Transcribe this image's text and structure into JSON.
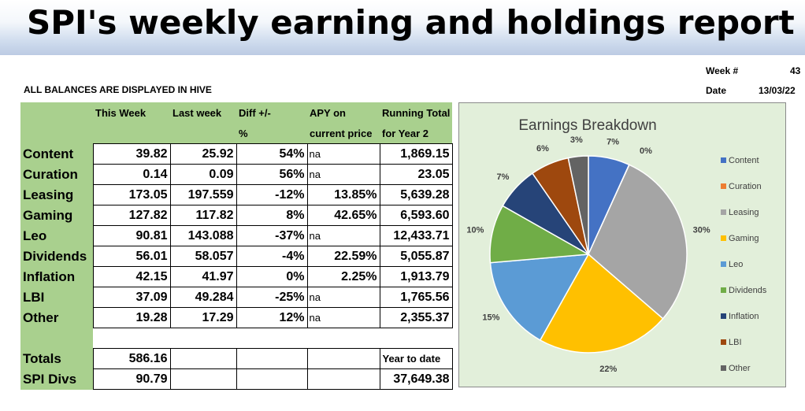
{
  "title": "SPI's weekly earning and holdings report",
  "week_label": "Week #",
  "week_value": "43",
  "date_label": "Date",
  "date_value": "13/03/22",
  "caption": "ALL BALANCES ARE DISPLAYED IN HIVE",
  "headers": {
    "this_week": "This Week",
    "last_week": "Last week",
    "diff_1": "Diff +/-",
    "diff_2": "%",
    "apy_1": "APY on",
    "apy_2": "current price",
    "total_1": "Running Total",
    "total_2": "for Year 2"
  },
  "rows": [
    {
      "label": "Content",
      "this_week": "39.82",
      "last_week": "25.92",
      "diff": "54%",
      "apy": "na",
      "total": "1,869.15"
    },
    {
      "label": "Curation",
      "this_week": "0.14",
      "last_week": "0.09",
      "diff": "56%",
      "apy": "na",
      "total": "23.05"
    },
    {
      "label": "Leasing",
      "this_week": "173.05",
      "last_week": "197.559",
      "diff": "-12%",
      "apy": "13.85%",
      "total": "5,639.28"
    },
    {
      "label": "Gaming",
      "this_week": "127.82",
      "last_week": "117.82",
      "diff": "8%",
      "apy": "42.65%",
      "total": "6,593.60"
    },
    {
      "label": "Leo",
      "this_week": "90.81",
      "last_week": "143.088",
      "diff": "-37%",
      "apy": "na",
      "total": "12,433.71"
    },
    {
      "label": "Dividends",
      "this_week": "56.01",
      "last_week": "58.057",
      "diff": "-4%",
      "apy": "22.59%",
      "total": "5,055.87"
    },
    {
      "label": "Inflation",
      "this_week": "42.15",
      "last_week": "41.97",
      "diff": "0%",
      "apy": "2.25%",
      "total": "1,913.79"
    },
    {
      "label": "LBI",
      "this_week": "37.09",
      "last_week": "49.284",
      "diff": "-25%",
      "apy": "na",
      "total": "1,765.56"
    },
    {
      "label": "Other",
      "this_week": "19.28",
      "last_week": "17.29",
      "diff": "12%",
      "apy": "na",
      "total": "2,355.37"
    }
  ],
  "totals": {
    "label": "Totals",
    "value": "586.16",
    "ytd_label": "Year to date"
  },
  "spi_divs": {
    "label": "SPI Divs",
    "value": "90.79",
    "ytd_value": "37,649.38"
  },
  "chart_data": {
    "type": "pie",
    "title": "Earnings Breakdown",
    "legend_position": "right",
    "slices": [
      {
        "name": "Content",
        "value": 39.82,
        "label": "7%",
        "color": "#4472c4"
      },
      {
        "name": "Curation",
        "value": 0.14,
        "label": "0%",
        "color": "#ed7d31"
      },
      {
        "name": "Leasing",
        "value": 173.05,
        "label": "30%",
        "color": "#a5a5a5"
      },
      {
        "name": "Gaming",
        "value": 127.82,
        "label": "22%",
        "color": "#ffc000"
      },
      {
        "name": "Leo",
        "value": 90.81,
        "label": "15%",
        "color": "#5b9bd5"
      },
      {
        "name": "Dividends",
        "value": 56.01,
        "label": "10%",
        "color": "#70ad47"
      },
      {
        "name": "Inflation",
        "value": 42.15,
        "label": "7%",
        "color": "#264478"
      },
      {
        "name": "LBI",
        "value": 37.09,
        "label": "6%",
        "color": "#9e480e"
      },
      {
        "name": "Other",
        "value": 19.28,
        "label": "3%",
        "color": "#636363"
      }
    ]
  }
}
